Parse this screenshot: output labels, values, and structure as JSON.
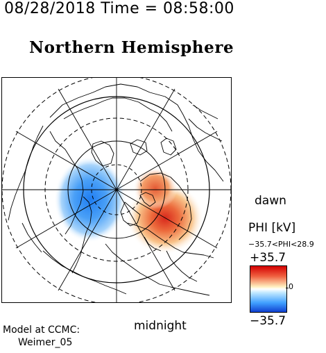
{
  "header": {
    "timestamp": "08/28/2018 Time = 08:58:00",
    "hemisphere": "Northern Hemisphere"
  },
  "map": {
    "orientation_labels": {
      "right": "dawn",
      "bottom": "midnight"
    },
    "potential_pattern": {
      "negative_cell": {
        "sector": "dusk/pre-midnight",
        "color": "#2b8cff"
      },
      "positive_cell": {
        "sector": "dawn/post-midnight",
        "color": "#e23a2a"
      }
    }
  },
  "colorbar": {
    "title": "PHI [kV]",
    "range_text": "−35.7<PHI<28.9",
    "max_label": "+35.7",
    "zero_label": "0",
    "min_label": "−35.7",
    "colors": {
      "high": "#d40000",
      "mid": "#ffffff",
      "low": "#1040d0"
    }
  },
  "credits": {
    "line1": "Model at CCMC:",
    "line2": "Weimer_05"
  }
}
